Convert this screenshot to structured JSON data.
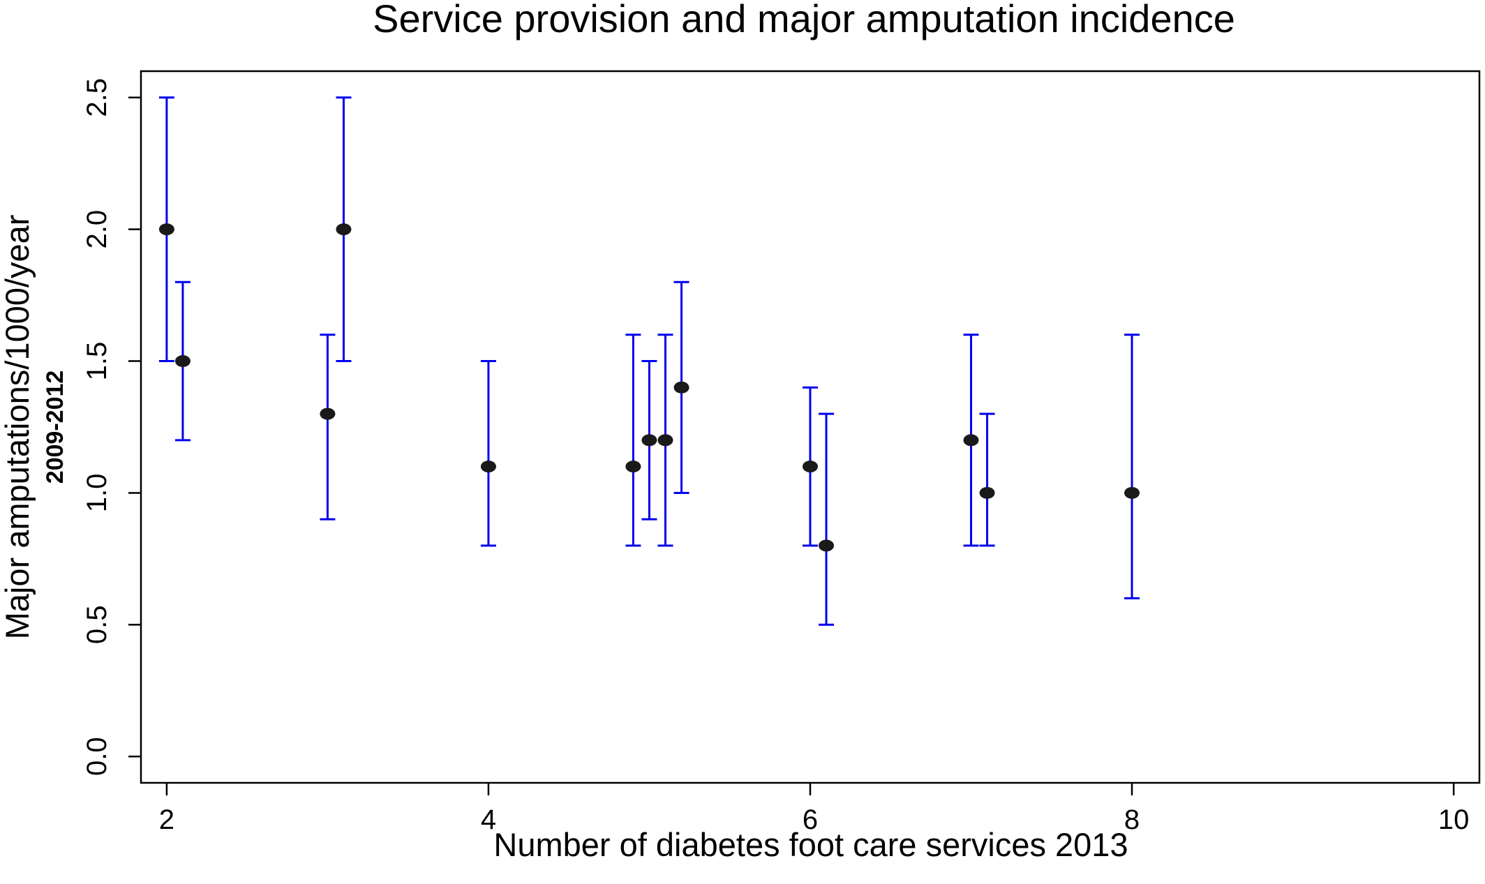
{
  "chart_data": {
    "type": "scatter",
    "title": "Service provision and major amputation incidence",
    "xlabel": "Number of diabetes foot care services 2013",
    "ylabel": "Major amputations/1000/year",
    "ylabel_sub": "2009-2012",
    "xlim": [
      1.84,
      10.16
    ],
    "ylim": [
      -0.1,
      2.6
    ],
    "x_ticks": [
      2,
      4,
      6,
      8,
      10
    ],
    "y_ticks": [
      0.0,
      0.5,
      1.0,
      1.5,
      2.0,
      2.5
    ],
    "x_tick_labels": [
      "2",
      "4",
      "6",
      "8",
      "10"
    ],
    "y_tick_labels": [
      "0.0",
      "0.5",
      "1.0",
      "1.5",
      "2.0",
      "2.5"
    ],
    "grid": false,
    "point_color": "#1a1a1a",
    "errorbar_color": "#0000ee",
    "points": [
      {
        "x": 2.0,
        "y": 2.0,
        "lower": 1.5,
        "upper": 2.5
      },
      {
        "x": 2.1,
        "y": 1.5,
        "lower": 1.2,
        "upper": 1.8
      },
      {
        "x": 3.0,
        "y": 1.3,
        "lower": 0.9,
        "upper": 1.6
      },
      {
        "x": 3.1,
        "y": 2.0,
        "lower": 1.5,
        "upper": 2.5
      },
      {
        "x": 4.0,
        "y": 1.1,
        "lower": 0.8,
        "upper": 1.5
      },
      {
        "x": 4.9,
        "y": 1.1,
        "lower": 0.8,
        "upper": 1.6
      },
      {
        "x": 5.0,
        "y": 1.2,
        "lower": 0.9,
        "upper": 1.5
      },
      {
        "x": 5.1,
        "y": 1.2,
        "lower": 0.8,
        "upper": 1.6
      },
      {
        "x": 5.2,
        "y": 1.4,
        "lower": 1.0,
        "upper": 1.8
      },
      {
        "x": 6.0,
        "y": 1.1,
        "lower": 0.8,
        "upper": 1.4
      },
      {
        "x": 6.1,
        "y": 0.8,
        "lower": 0.5,
        "upper": 1.3
      },
      {
        "x": 7.0,
        "y": 1.2,
        "lower": 0.8,
        "upper": 1.6
      },
      {
        "x": 7.1,
        "y": 1.0,
        "lower": 0.8,
        "upper": 1.3
      },
      {
        "x": 8.0,
        "y": 1.0,
        "lower": 0.6,
        "upper": 1.6
      }
    ]
  }
}
